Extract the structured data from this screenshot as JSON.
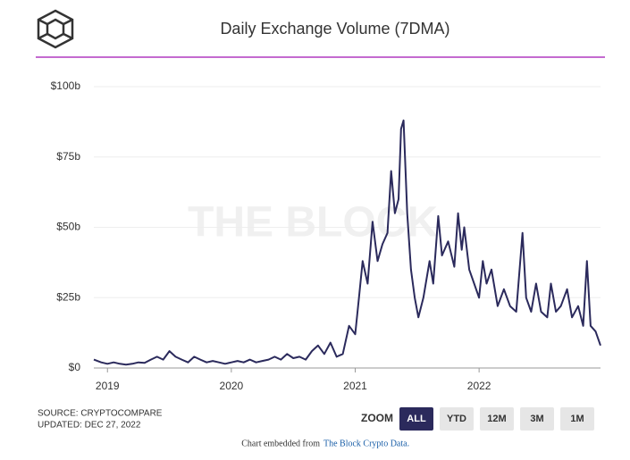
{
  "chart_data": {
    "type": "line",
    "title": "Daily Exchange Volume (7DMA)",
    "watermark": "THE BLOCK",
    "x": [
      2018.89,
      2018.95,
      2019.0,
      2019.05,
      2019.1,
      2019.15,
      2019.2,
      2019.25,
      2019.3,
      2019.35,
      2019.4,
      2019.45,
      2019.5,
      2019.55,
      2019.6,
      2019.65,
      2019.7,
      2019.75,
      2019.8,
      2019.85,
      2019.9,
      2019.95,
      2020.0,
      2020.05,
      2020.1,
      2020.15,
      2020.2,
      2020.25,
      2020.3,
      2020.35,
      2020.4,
      2020.45,
      2020.5,
      2020.55,
      2020.6,
      2020.65,
      2020.7,
      2020.75,
      2020.8,
      2020.85,
      2020.9,
      2020.95,
      2021.0,
      2021.03,
      2021.06,
      2021.1,
      2021.14,
      2021.18,
      2021.22,
      2021.26,
      2021.29,
      2021.32,
      2021.35,
      2021.37,
      2021.39,
      2021.42,
      2021.45,
      2021.48,
      2021.51,
      2021.55,
      2021.6,
      2021.63,
      2021.67,
      2021.7,
      2021.75,
      2021.8,
      2021.83,
      2021.86,
      2021.88,
      2021.92,
      2021.96,
      2022.0,
      2022.03,
      2022.06,
      2022.1,
      2022.15,
      2022.2,
      2022.25,
      2022.3,
      2022.35,
      2022.38,
      2022.42,
      2022.46,
      2022.5,
      2022.55,
      2022.58,
      2022.62,
      2022.66,
      2022.71,
      2022.75,
      2022.8,
      2022.84,
      2022.87,
      2022.9,
      2022.94,
      2022.98
    ],
    "series": [
      {
        "color": "#2b2a5c",
        "values": [
          3,
          2,
          1.5,
          2,
          1.5,
          1.2,
          1.5,
          2,
          1.8,
          3,
          4,
          3,
          6,
          4,
          3,
          2,
          4,
          3,
          2,
          2.5,
          2,
          1.5,
          2,
          2.5,
          2,
          3,
          2,
          2.5,
          3,
          4,
          3,
          5,
          3.5,
          4,
          3,
          6,
          8,
          5,
          9,
          4,
          5,
          15,
          12,
          25,
          38,
          30,
          52,
          38,
          44,
          48,
          70,
          55,
          60,
          85,
          88,
          55,
          35,
          25,
          18,
          25,
          38,
          30,
          54,
          40,
          45,
          36,
          55,
          42,
          50,
          35,
          30,
          25,
          38,
          30,
          35,
          22,
          28,
          22,
          20,
          48,
          25,
          20,
          30,
          20,
          18,
          30,
          20,
          22,
          28,
          18,
          22,
          15,
          38,
          15,
          13,
          8
        ]
      }
    ],
    "xlim": [
      2018.89,
      2022.98
    ],
    "xticks": [
      2019,
      2020,
      2021,
      2022
    ],
    "ylim": [
      0,
      100
    ],
    "yticks": [
      {
        "value": 0,
        "label": "$0"
      },
      {
        "value": 25,
        "label": "$25b"
      },
      {
        "value": 50,
        "label": "$50b"
      },
      {
        "value": 75,
        "label": "$75b"
      },
      {
        "value": 100,
        "label": "$100b"
      }
    ],
    "grid": true
  },
  "source": [
    "SOURCE: CRYPTOCOMPARE",
    "UPDATED: DEC 27, 2022"
  ],
  "zoom": {
    "label": "ZOOM",
    "buttons": [
      "ALL",
      "YTD",
      "12M",
      "3M",
      "1M"
    ],
    "active": 0
  },
  "footer": {
    "prefix": "Chart embedded from",
    "link": "The Block Crypto Data."
  }
}
